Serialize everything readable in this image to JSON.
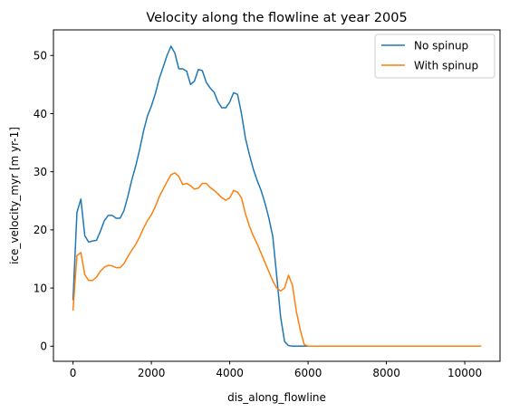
{
  "chart_data": {
    "type": "line",
    "title": "Velocity along the flowline at year 2005",
    "xlabel": "dis_along_flowline",
    "ylabel": "ice_velocity_myr [m yr-1]",
    "xlim": [
      -500,
      10900
    ],
    "ylim": [
      -2.6,
      54.4
    ],
    "xticks": [
      0,
      2000,
      4000,
      6000,
      8000,
      10000
    ],
    "yticks": [
      0,
      10,
      20,
      30,
      40,
      50
    ],
    "grid": false,
    "legend_position": "top-right",
    "series": [
      {
        "name": "No spinup",
        "color": "#1f77b4",
        "x": [
          0,
          100,
          200,
          300,
          400,
          500,
          600,
          700,
          800,
          900,
          1000,
          1100,
          1200,
          1300,
          1400,
          1500,
          1600,
          1700,
          1800,
          1900,
          2000,
          2100,
          2200,
          2300,
          2400,
          2500,
          2600,
          2700,
          2800,
          2900,
          3000,
          3100,
          3200,
          3300,
          3400,
          3500,
          3600,
          3700,
          3800,
          3900,
          4000,
          4100,
          4200,
          4300,
          4400,
          4500,
          4600,
          4700,
          4800,
          4900,
          5000,
          5100,
          5200,
          5300,
          5400,
          5500,
          5600,
          5700,
          5800,
          5900,
          6000,
          7000,
          8000,
          9000,
          10000,
          10400
        ],
        "y": [
          8.0,
          23.0,
          25.3,
          19.0,
          17.9,
          18.1,
          18.2,
          19.8,
          21.6,
          22.5,
          22.5,
          22.0,
          22.0,
          23.3,
          25.8,
          28.6,
          31.0,
          33.8,
          37.0,
          39.6,
          41.3,
          43.4,
          46.0,
          48.0,
          50.0,
          51.6,
          50.4,
          47.7,
          47.7,
          47.3,
          45.0,
          45.6,
          47.6,
          47.4,
          45.4,
          44.4,
          43.7,
          42.0,
          41.0,
          41.0,
          42.0,
          43.6,
          43.3,
          40.0,
          35.8,
          33.0,
          30.5,
          28.5,
          26.8,
          24.6,
          22.0,
          18.8,
          12.0,
          5.0,
          0.8,
          0.1,
          0.0,
          0.0,
          0.0,
          0.0,
          0.0,
          0.0,
          0.0,
          0.0,
          0.0,
          0.0
        ]
      },
      {
        "name": "With spinup",
        "color": "#ff7f0e",
        "x": [
          0,
          100,
          200,
          300,
          400,
          500,
          600,
          700,
          800,
          900,
          1000,
          1100,
          1200,
          1300,
          1400,
          1500,
          1600,
          1700,
          1800,
          1900,
          2000,
          2100,
          2200,
          2300,
          2400,
          2500,
          2600,
          2700,
          2800,
          2900,
          3000,
          3100,
          3200,
          3300,
          3400,
          3500,
          3600,
          3700,
          3800,
          3900,
          4000,
          4100,
          4200,
          4300,
          4400,
          4500,
          4600,
          4700,
          4800,
          4900,
          5000,
          5100,
          5200,
          5300,
          5400,
          5500,
          5600,
          5700,
          5800,
          5900,
          6000,
          7000,
          8000,
          9000,
          10000,
          10400
        ],
        "y": [
          6.2,
          15.6,
          16.1,
          12.3,
          11.3,
          11.3,
          11.9,
          12.9,
          13.6,
          13.9,
          13.8,
          13.5,
          13.5,
          14.2,
          15.4,
          16.5,
          17.5,
          18.8,
          20.3,
          21.6,
          22.6,
          24.0,
          25.7,
          27.0,
          28.3,
          29.5,
          29.8,
          29.2,
          27.8,
          28.0,
          27.6,
          27.0,
          27.2,
          28.0,
          28.0,
          27.3,
          26.8,
          26.2,
          25.5,
          25.1,
          25.5,
          26.8,
          26.5,
          25.5,
          22.8,
          20.7,
          19.0,
          17.6,
          16.0,
          14.4,
          12.8,
          11.2,
          10.0,
          9.5,
          10.0,
          12.2,
          10.5,
          6.0,
          2.8,
          0.3,
          0.0,
          0.0,
          0.0,
          0.0,
          0.0,
          0.0
        ]
      }
    ]
  }
}
